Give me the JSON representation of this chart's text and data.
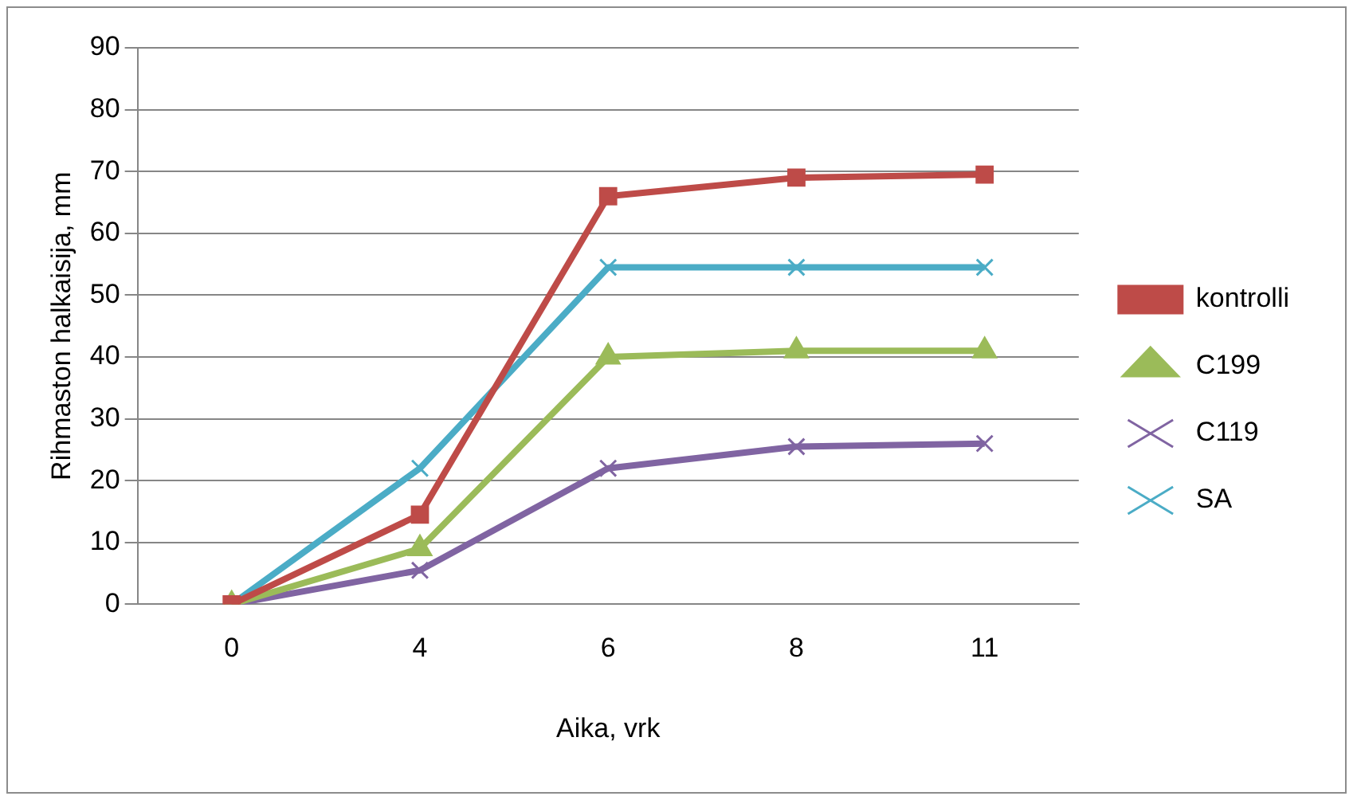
{
  "chart_data": {
    "type": "line",
    "xlabel": "Aika, vrk",
    "ylabel": "Rihmaston halkaisija, mm",
    "categories": [
      "0",
      "4",
      "6",
      "8",
      "11"
    ],
    "ylim": [
      0,
      90
    ],
    "yticks": [
      0,
      10,
      20,
      30,
      40,
      50,
      60,
      70,
      80,
      90
    ],
    "grid": "y",
    "legend": "right",
    "line_style": "solid",
    "series": [
      {
        "name": "kontrolli",
        "color": "#be4b48",
        "marker": "square",
        "values": [
          0,
          14.5,
          66,
          69,
          69.5
        ]
      },
      {
        "name": "C199",
        "color": "#9bbb59",
        "marker": "triangle",
        "values": [
          0,
          9,
          40,
          41,
          41
        ]
      },
      {
        "name": "C119",
        "color": "#8064a2",
        "marker": "cross",
        "values": [
          0,
          5.5,
          22,
          25.5,
          26
        ]
      },
      {
        "name": "SA",
        "color": "#4bacc6",
        "marker": "cross",
        "values": [
          0,
          22,
          54.5,
          54.5,
          54.5
        ]
      }
    ]
  }
}
